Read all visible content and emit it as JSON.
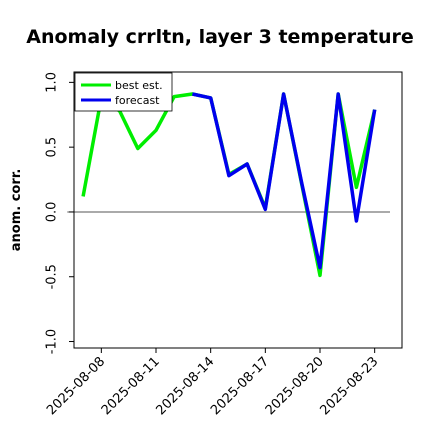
{
  "chart_data": {
    "type": "line",
    "title": "Anomaly crrltn, layer 3 temperature",
    "xlabel": "",
    "ylabel": "anom. corr.",
    "ylim": [
      -1.05,
      1.08
    ],
    "yticks": [
      -1.0,
      -0.5,
      0.0,
      0.5,
      1.0
    ],
    "ytick_labels": [
      "-1.0",
      "-0.5",
      "0.0",
      "0.5",
      "1.0"
    ],
    "xlim": [
      -1.5,
      16.5
    ],
    "x_tick_positions": [
      0,
      3,
      6,
      9,
      12,
      15
    ],
    "x_tick_labels": [
      "2025-08-08",
      "2025-08-11",
      "2025-08-14",
      "2025-08-17",
      "2025-08-20",
      "2025-08-23"
    ],
    "x_tick_colors": [
      "#000000",
      "#000000",
      "#228B22",
      "#000000",
      "#000000",
      "#000000"
    ],
    "zero_line": true,
    "legend_position": "upper-left",
    "series": [
      {
        "name": "best est.",
        "color": "#00ee00",
        "x": [
          -1,
          0,
          1,
          2,
          3,
          4,
          5,
          6,
          7,
          8,
          9,
          10,
          11,
          12,
          13,
          14,
          15
        ],
        "values": [
          0.12,
          0.88,
          0.78,
          0.49,
          0.63,
          0.89,
          0.91,
          0.88,
          0.29,
          0.37,
          0.03,
          0.91,
          0.21,
          -0.49,
          0.91,
          0.19,
          0.79
        ]
      },
      {
        "name": "forecast",
        "color": "#0000ee",
        "x": [
          5,
          6,
          7,
          8,
          9,
          10,
          11,
          12,
          13,
          14,
          15
        ],
        "values": [
          0.91,
          0.88,
          0.28,
          0.37,
          0.02,
          0.91,
          0.22,
          -0.43,
          0.91,
          -0.07,
          0.79
        ]
      }
    ]
  }
}
